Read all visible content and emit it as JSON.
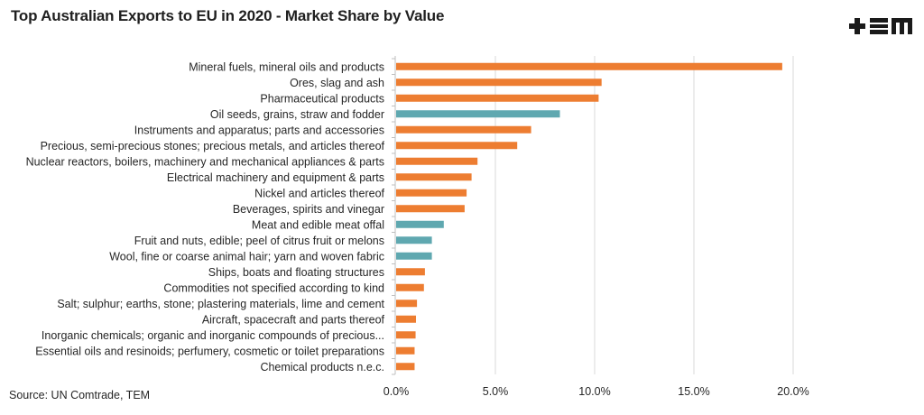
{
  "title": "Top Australian Exports to EU in 2020 - Market Share by Value",
  "source": "Source: UN Comtrade, TEM",
  "logo": {
    "icon": "tem-logo-icon",
    "text": "+EM"
  },
  "colors": {
    "orange": "#ED7D31",
    "teal": "#5FA8B0",
    "grid": "#D9D9D9",
    "axis": "#BFBFBF"
  },
  "chart_data": {
    "type": "bar",
    "orientation": "horizontal",
    "title": "Top Australian Exports to EU in 2020 - Market Share by Value",
    "xlabel": "",
    "ylabel": "",
    "xlim": [
      0,
      20
    ],
    "x_ticks": [
      0,
      5,
      10,
      15,
      20
    ],
    "x_tick_labels": [
      "0.0%",
      "5.0%",
      "10.0%",
      "15.0%",
      "20.0%"
    ],
    "grid": "vertical",
    "legend": "none",
    "categories": [
      "Mineral fuels, mineral oils and products",
      "Ores, slag and ash",
      "Pharmaceutical products",
      "Oil seeds, grains, straw and fodder",
      "Instruments and apparatus; parts and accessories",
      "Precious, semi-precious stones; precious metals, and articles thereof",
      "Nuclear reactors, boilers, machinery and mechanical appliances & parts",
      "Electrical machinery and equipment & parts",
      "Nickel and articles thereof",
      "Beverages, spirits and vinegar",
      "Meat and edible meat offal",
      "Fruit and nuts, edible; peel of citrus fruit or melons",
      "Wool, fine or coarse animal hair; yarn and woven fabric",
      "Ships, boats and floating structures",
      "Commodities not specified according to kind",
      "Salt; sulphur; earths, stone; plastering materials, lime and cement",
      "Aircraft, spacecraft and parts thereof",
      "Inorganic chemicals; organic and inorganic compounds of precious...",
      "Essential oils and resinoids; perfumery, cosmetic or toilet preparations",
      "Chemical products n.e.c."
    ],
    "values": [
      19.45,
      10.35,
      10.2,
      8.25,
      6.8,
      6.1,
      4.1,
      3.8,
      3.55,
      3.45,
      2.4,
      1.8,
      1.8,
      1.45,
      1.4,
      1.05,
      1.0,
      0.98,
      0.93,
      0.93
    ],
    "bar_colors": [
      "orange",
      "orange",
      "orange",
      "teal",
      "orange",
      "orange",
      "orange",
      "orange",
      "orange",
      "orange",
      "teal",
      "teal",
      "teal",
      "orange",
      "orange",
      "orange",
      "orange",
      "orange",
      "orange",
      "orange"
    ],
    "unit": "%"
  }
}
